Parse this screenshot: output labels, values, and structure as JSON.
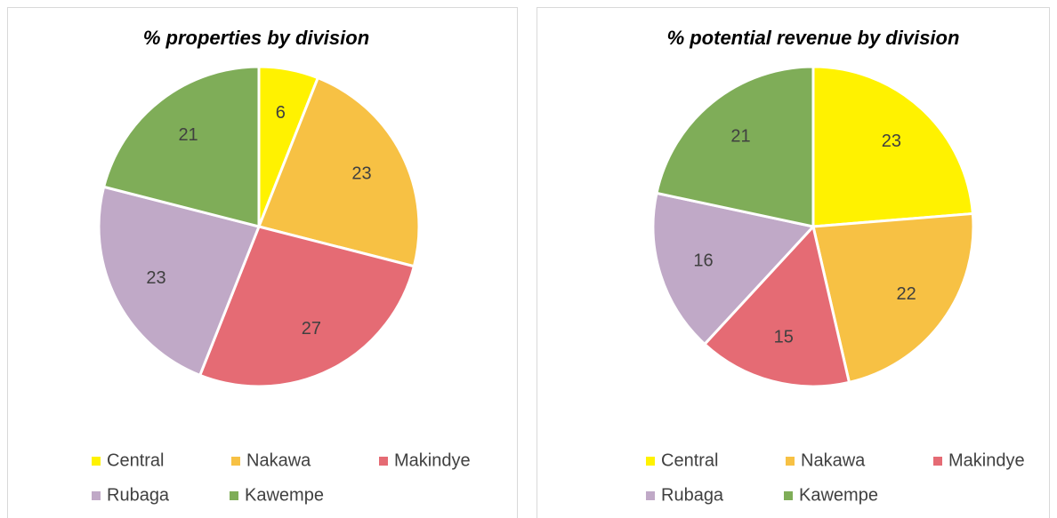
{
  "chart_data": [
    {
      "type": "pie",
      "title": "% properties by division",
      "categories": [
        "Central",
        "Nakawa",
        "Makindye",
        "Rubaga",
        "Kawempe"
      ],
      "values": [
        6,
        23,
        27,
        23,
        21
      ],
      "colors": [
        "#fff200",
        "#f7c144",
        "#e56b74",
        "#c0a9c7",
        "#7fad58"
      ]
    },
    {
      "type": "pie",
      "title": "% potential revenue by division",
      "categories": [
        "Central",
        "Nakawa",
        "Makindye",
        "Rubaga",
        "Kawempe"
      ],
      "values": [
        23,
        22,
        15,
        16,
        21
      ],
      "colors": [
        "#fff200",
        "#f7c144",
        "#e56b74",
        "#c0a9c7",
        "#7fad58"
      ]
    }
  ]
}
